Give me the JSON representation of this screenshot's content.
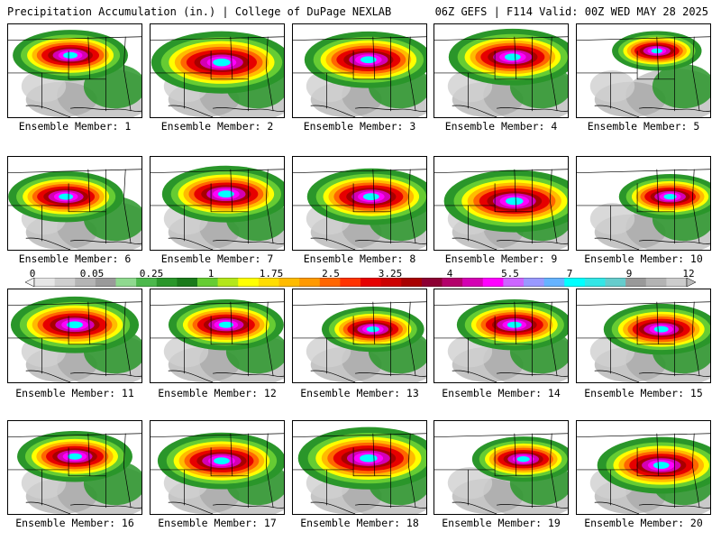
{
  "header": {
    "title": "Precipitation Accumulation (in.) | College of DuPage NEXLAB",
    "run_info": "06Z GEFS | F114 Valid: 00Z WED MAY 28 2025"
  },
  "members": [
    {
      "label": "Ensemble Member: 1"
    },
    {
      "label": "Ensemble Member: 2"
    },
    {
      "label": "Ensemble Member: 3"
    },
    {
      "label": "Ensemble Member: 4"
    },
    {
      "label": "Ensemble Member: 5"
    },
    {
      "label": "Ensemble Member: 6"
    },
    {
      "label": "Ensemble Member: 7"
    },
    {
      "label": "Ensemble Member: 8"
    },
    {
      "label": "Ensemble Member: 9"
    },
    {
      "label": "Ensemble Member: 10"
    },
    {
      "label": "Ensemble Member: 11"
    },
    {
      "label": "Ensemble Member: 12"
    },
    {
      "label": "Ensemble Member: 13"
    },
    {
      "label": "Ensemble Member: 14"
    },
    {
      "label": "Ensemble Member: 15"
    },
    {
      "label": "Ensemble Member: 16"
    },
    {
      "label": "Ensemble Member: 17"
    },
    {
      "label": "Ensemble Member: 18"
    },
    {
      "label": "Ensemble Member: 19"
    },
    {
      "label": "Ensemble Member: 20"
    }
  ],
  "color_scale": {
    "tick_labels": [
      "0",
      "0.05",
      "0.25",
      "1",
      "1.75",
      "2.5",
      "3.25",
      "4",
      "5.5",
      "7",
      "9",
      "12"
    ],
    "colors": [
      "#e6e6e6",
      "#cfcfcf",
      "#b4b4b4",
      "#9a9a9a",
      "#8fd98f",
      "#4cb84c",
      "#2a962a",
      "#1a7a1a",
      "#66cc33",
      "#b3e61a",
      "#ffff00",
      "#ffdd00",
      "#ffbb00",
      "#ff9900",
      "#ff6600",
      "#ff3300",
      "#e60000",
      "#cc0000",
      "#a80000",
      "#8c0033",
      "#b3006b",
      "#d400b3",
      "#ff00ff",
      "#cc66ff",
      "#9999ff",
      "#66b3ff",
      "#00ffff",
      "#33e6e6",
      "#66cccc",
      "#999999",
      "#b3b3b3",
      "#cccccc"
    ]
  }
}
